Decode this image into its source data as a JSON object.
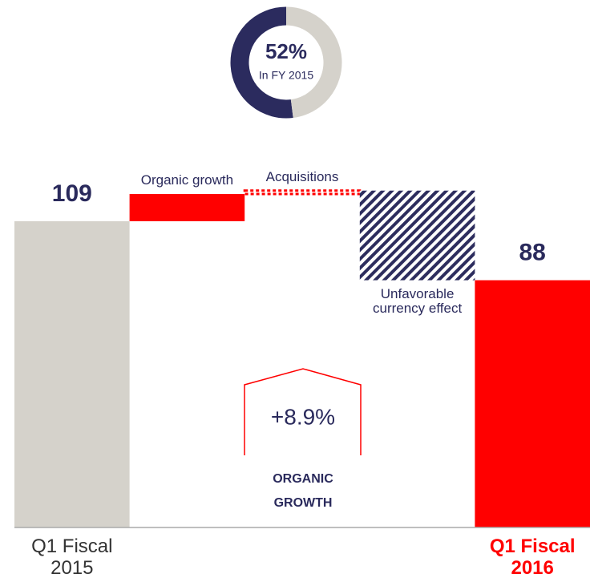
{
  "chart_data": [
    {
      "type": "waterfall",
      "categories": [
        "Q1 Fiscal 2015",
        "Organic growth",
        "Acquisitions",
        "Unfavorable currency effect",
        "Q1 Fiscal 2016"
      ],
      "measure": [
        "absolute",
        "relative",
        "relative",
        "relative",
        "absolute"
      ],
      "values": [
        109,
        9.7,
        1.2,
        -31.9,
        88
      ],
      "colors": [
        "#d5d2cb",
        "#ff0000",
        "#ff0000",
        "#2d2d5e",
        "#ff0000"
      ],
      "ylim": [
        0,
        120
      ],
      "annotation": "+8.9%",
      "annotation_label": "ORGANIC GROWTH"
    },
    {
      "type": "donut",
      "values": [
        52,
        48
      ],
      "value_labels": [
        "52%",
        null
      ],
      "colors": [
        "#2b2b5e",
        "#d5d2cb"
      ],
      "subtitle": "In FY 2015"
    }
  ]
}
